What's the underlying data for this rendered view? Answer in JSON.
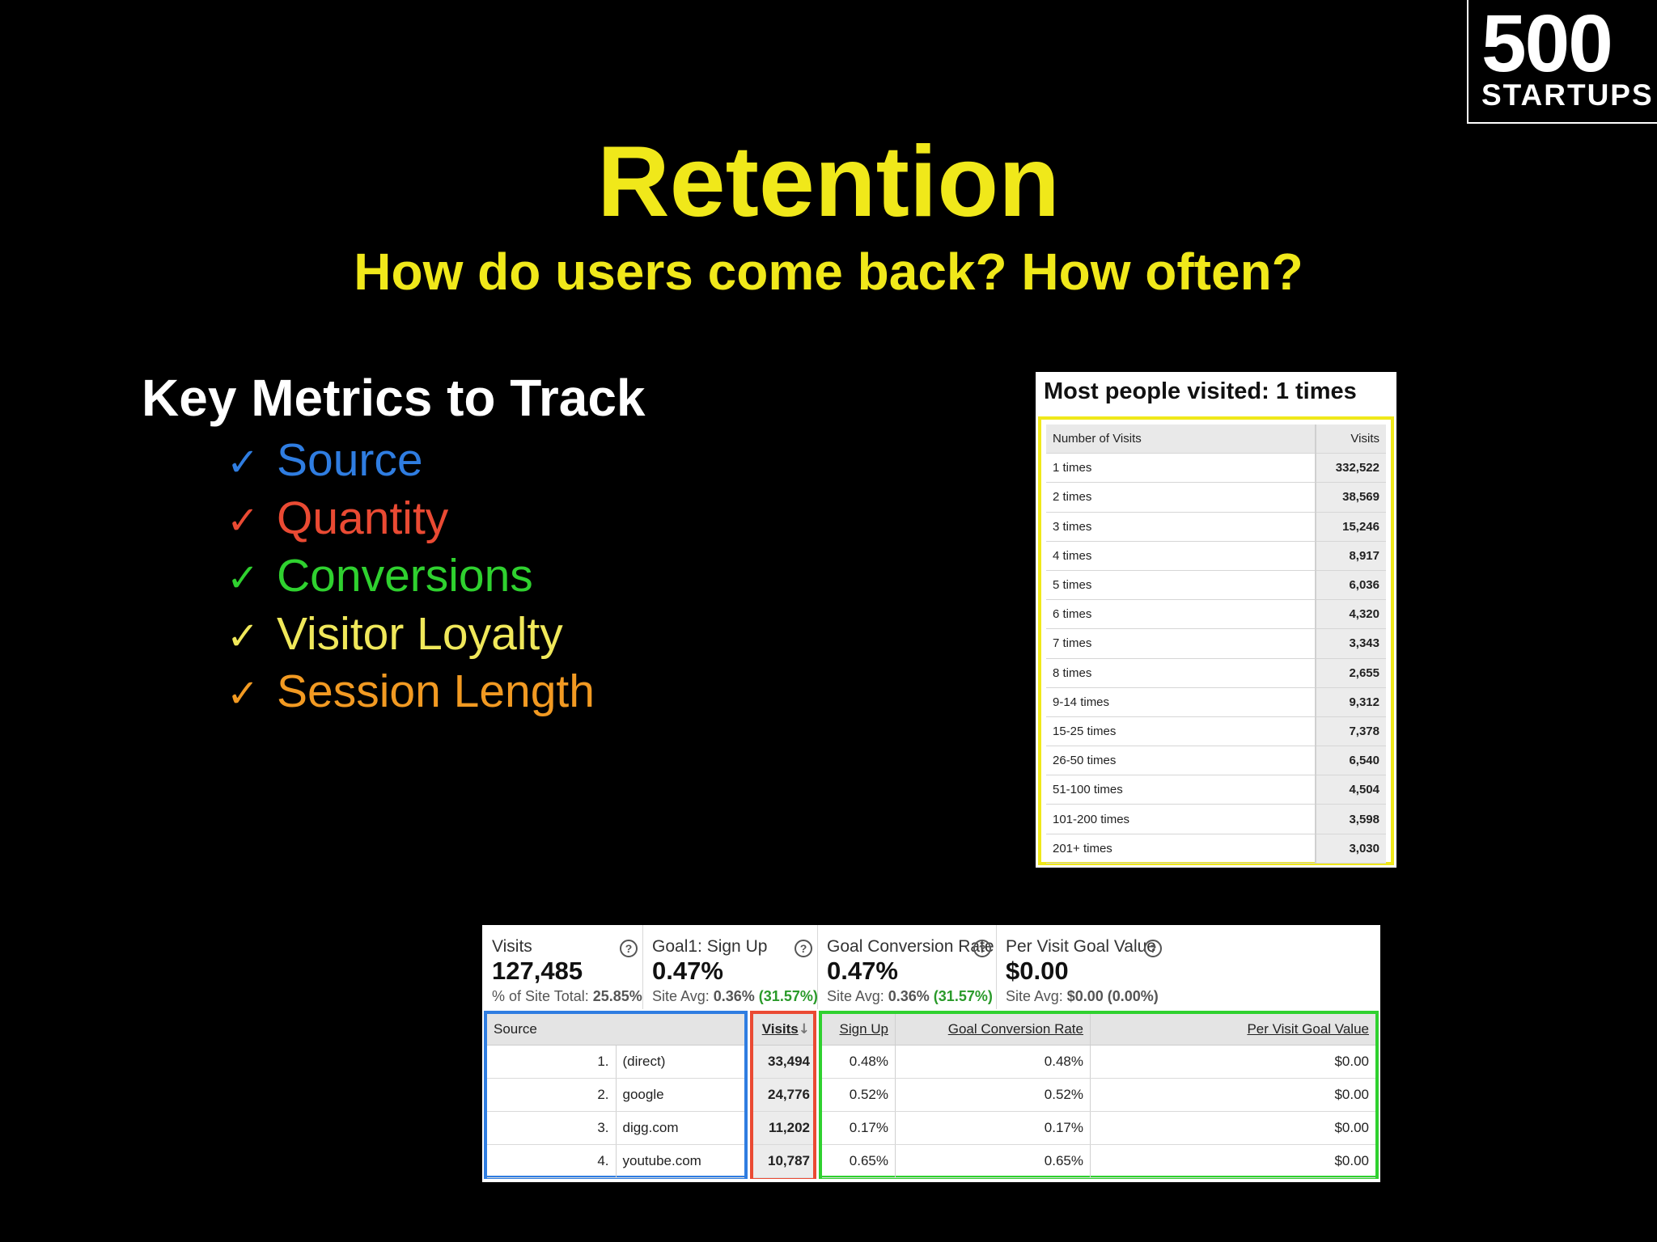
{
  "logo": {
    "number": "500",
    "word": "STARTUPS"
  },
  "slide": {
    "title": "Retention",
    "subtitle": "How do users come back? How often?"
  },
  "metrics": {
    "heading": "Key Metrics to Track",
    "check_glyph": "✓",
    "items": [
      {
        "label": "Source",
        "color": "#2f7de1"
      },
      {
        "label": "Quantity",
        "color": "#ea4a33"
      },
      {
        "label": "Conversions",
        "color": "#2fd12f"
      },
      {
        "label": "Visitor Loyalty",
        "color": "#f0e85a"
      },
      {
        "label": "Session Length",
        "color": "#f29a22"
      }
    ]
  },
  "visits_panel": {
    "header": "Most people visited: 1 times",
    "border_color": "#f0e81a",
    "columns": [
      "Number of Visits",
      "Visits"
    ],
    "rows": [
      [
        "1 times",
        "332,522"
      ],
      [
        "2 times",
        "38,569"
      ],
      [
        "3 times",
        "15,246"
      ],
      [
        "4 times",
        "8,917"
      ],
      [
        "5 times",
        "6,036"
      ],
      [
        "6 times",
        "4,320"
      ],
      [
        "7 times",
        "3,343"
      ],
      [
        "8 times",
        "2,655"
      ],
      [
        "9-14 times",
        "9,312"
      ],
      [
        "15-25 times",
        "7,378"
      ],
      [
        "26-50 times",
        "6,540"
      ],
      [
        "51-100 times",
        "4,504"
      ],
      [
        "101-200 times",
        "3,598"
      ],
      [
        "201+ times",
        "3,030"
      ]
    ]
  },
  "analytics": {
    "summary": [
      {
        "label": "Visits",
        "value": "127,485",
        "sub_prefix": "% of Site Total:",
        "sub_bold": "25.85%",
        "sub_pct": ""
      },
      {
        "label": "Goal1: Sign Up",
        "value": "0.47%",
        "sub_prefix": "Site Avg:",
        "sub_bold": "0.36%",
        "sub_pct": "(31.57%)"
      },
      {
        "label": "Goal Conversion Rate",
        "value": "0.47%",
        "sub_prefix": "Site Avg:",
        "sub_bold": "0.36%",
        "sub_pct": "(31.57%)"
      },
      {
        "label": "Per Visit Goal Value",
        "value": "$0.00",
        "sub_prefix": "Site Avg:",
        "sub_bold": "$0.00 (0.00%)",
        "sub_pct": ""
      }
    ],
    "help_glyph": "?",
    "source_header": "Source",
    "visits_header": "Visits",
    "sort_glyph": "↓",
    "goal_headers": [
      "Sign Up",
      "Goal Conversion Rate",
      "Per Visit Goal Value"
    ],
    "box_colors": {
      "source": "#2f7de1",
      "visits": "#ea4a33",
      "goals": "#2fd12f"
    },
    "rows": [
      {
        "rank": "1.",
        "source": "(direct)",
        "visits": "33,494",
        "signup": "0.48%",
        "rate": "0.48%",
        "value": "$0.00"
      },
      {
        "rank": "2.",
        "source": "google",
        "visits": "24,776",
        "signup": "0.52%",
        "rate": "0.52%",
        "value": "$0.00"
      },
      {
        "rank": "3.",
        "source": "digg.com",
        "visits": "11,202",
        "signup": "0.17%",
        "rate": "0.17%",
        "value": "$0.00"
      },
      {
        "rank": "4.",
        "source": "youtube.com",
        "visits": "10,787",
        "signup": "0.65%",
        "rate": "0.65%",
        "value": "$0.00"
      }
    ]
  }
}
